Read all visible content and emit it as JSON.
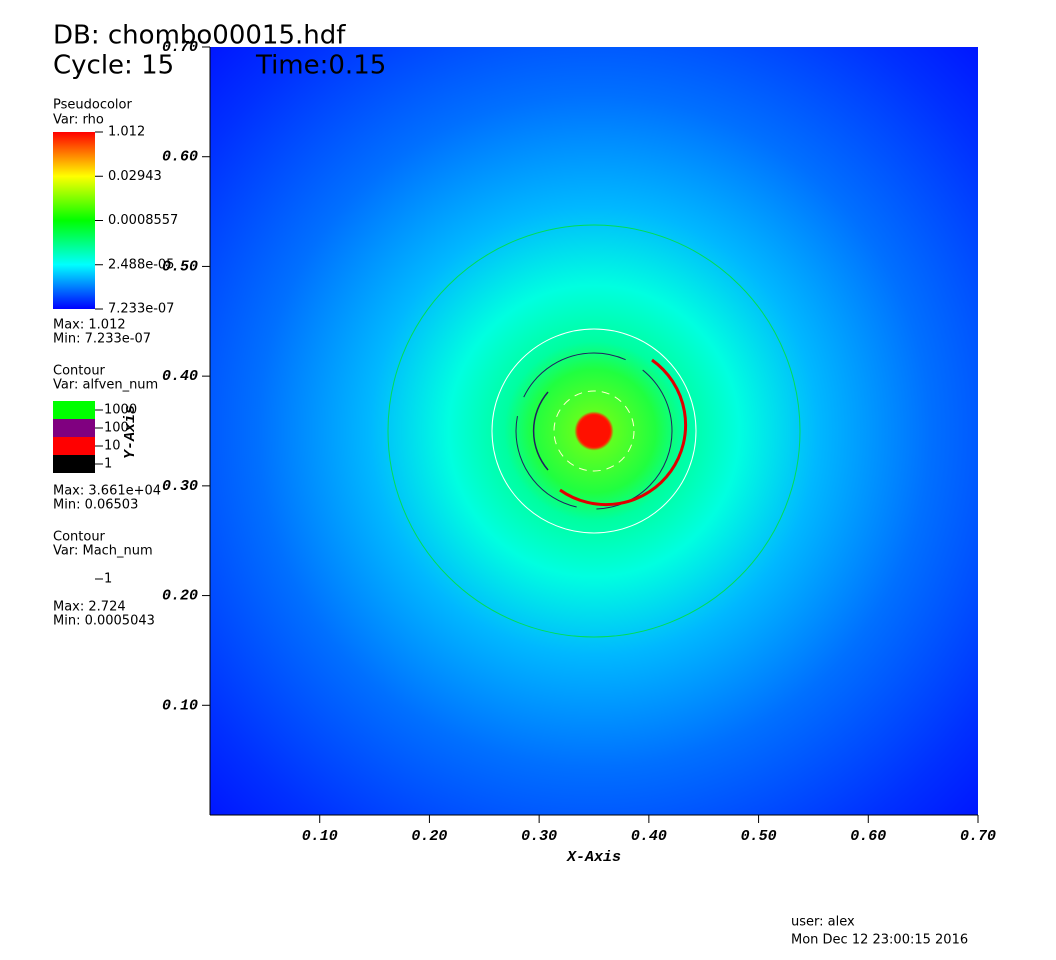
{
  "header": {
    "db": "DB: chombo00015.hdf",
    "cycle": "Cycle: 15",
    "time": "Time:0.15"
  },
  "legends": [
    {
      "plot": "Pseudocolor",
      "var": "Var: rho",
      "labels": [
        "1.012",
        "0.02943",
        "0.0008557",
        "2.488e-05",
        "7.233e-07"
      ],
      "max": "Max:  1.012",
      "min": "Min:  7.233e-07"
    },
    {
      "plot": "Contour",
      "var": "Var: alfven_num",
      "levels": [
        "1000",
        "100",
        "10",
        "1"
      ],
      "colors": [
        "#00ff00",
        "#800080",
        "#ff0000",
        "#000000"
      ],
      "max": "Max:  3.661e+04",
      "min": "Min:  0.06503"
    },
    {
      "plot": "Contour",
      "var": "Var: Mach_num",
      "levels": [
        "1"
      ],
      "max": "Max:  2.724",
      "min": "Min:  0.0005043"
    }
  ],
  "axes": {
    "x_title": "X-Axis",
    "y_title": "Y-Axis",
    "xlim": [
      0,
      0.7
    ],
    "ylim": [
      0,
      0.7
    ],
    "xticks": [
      {
        "value": 0.1,
        "label": "0.10"
      },
      {
        "value": 0.2,
        "label": "0.20"
      },
      {
        "value": 0.3,
        "label": "0.30"
      },
      {
        "value": 0.4,
        "label": "0.40"
      },
      {
        "value": 0.5,
        "label": "0.50"
      },
      {
        "value": 0.6,
        "label": "0.60"
      },
      {
        "value": 0.7,
        "label": "0.70"
      }
    ],
    "yticks": [
      {
        "value": 0.1,
        "label": "0.10"
      },
      {
        "value": 0.2,
        "label": "0.20"
      },
      {
        "value": 0.3,
        "label": "0.30"
      },
      {
        "value": 0.4,
        "label": "0.40"
      },
      {
        "value": 0.5,
        "label": "0.50"
      },
      {
        "value": 0.6,
        "label": "0.60"
      },
      {
        "value": 0.7,
        "label": "0.70"
      }
    ]
  },
  "footer": {
    "user": "user: alex",
    "date": "Mon Dec 12 23:00:15 2016"
  }
}
